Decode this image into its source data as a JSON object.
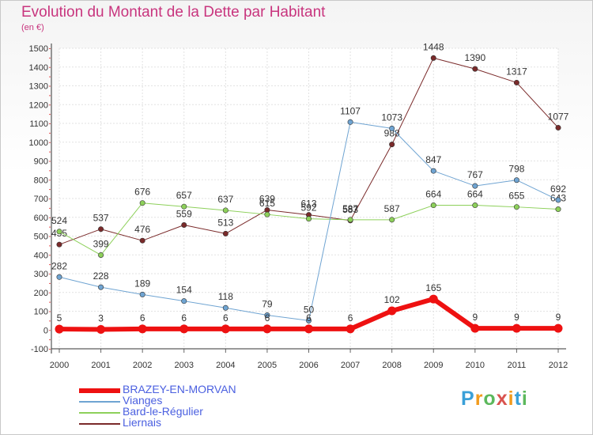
{
  "title": "Evolution du Montant de la Dette par Habitant",
  "subtitle": "(en €)",
  "logo": {
    "text": "Proxiti",
    "letter_colors": [
      "#3aa0d8",
      "#f29b1d",
      "#5cb85c",
      "#d9534f",
      "#f29b1d",
      "#3aa0d8",
      "#5cb85c"
    ]
  },
  "chart_data": {
    "type": "line",
    "title": "Evolution du Montant de la Dette par Habitant",
    "ylabel": "(en €)",
    "x": [
      "2000",
      "2001",
      "2002",
      "2003",
      "2004",
      "2005",
      "2006",
      "2007",
      "2008",
      "2009",
      "2010",
      "2011",
      "2012"
    ],
    "ylim": [
      -100,
      1500
    ],
    "yticks": [
      "-100",
      "0",
      "100",
      "200",
      "300",
      "400",
      "500",
      "600",
      "700",
      "800",
      "900",
      "1000",
      "1100",
      "1200",
      "1300",
      "1400",
      "1500"
    ],
    "grid": true,
    "legend_position": "bottom-left",
    "series": [
      {
        "name": "Liernais",
        "color": "#7a2a2a",
        "width": 1,
        "values": [
          455,
          537,
          476,
          559,
          513,
          639,
          613,
          583,
          988,
          1448,
          1390,
          1317,
          1077
        ]
      },
      {
        "name": "Bard-le-Régulier",
        "color": "#8dd05a",
        "width": 1,
        "values": [
          524,
          399,
          676,
          657,
          637,
          615,
          592,
          587,
          587,
          664,
          664,
          655,
          643
        ]
      },
      {
        "name": "Vianges",
        "color": "#6fa4d2",
        "width": 1,
        "values": [
          282,
          228,
          189,
          154,
          118,
          79,
          50,
          1107,
          1073,
          847,
          767,
          798,
          692
        ]
      },
      {
        "name": "BRAZEY-EN-MORVAN",
        "color": "#ee1111",
        "width": 6,
        "values": [
          5,
          3,
          6,
          6,
          6,
          6,
          6,
          6,
          102,
          165,
          9,
          9,
          9
        ]
      }
    ]
  },
  "legend": [
    {
      "name": "BRAZEY-EN-MORVAN",
      "color": "#ee1111",
      "width": 6
    },
    {
      "name": "Vianges",
      "color": "#6fa4d2",
      "width": 2
    },
    {
      "name": "Bard-le-Régulier",
      "color": "#8dd05a",
      "width": 2
    },
    {
      "name": "Liernais",
      "color": "#7a2a2a",
      "width": 2
    }
  ]
}
